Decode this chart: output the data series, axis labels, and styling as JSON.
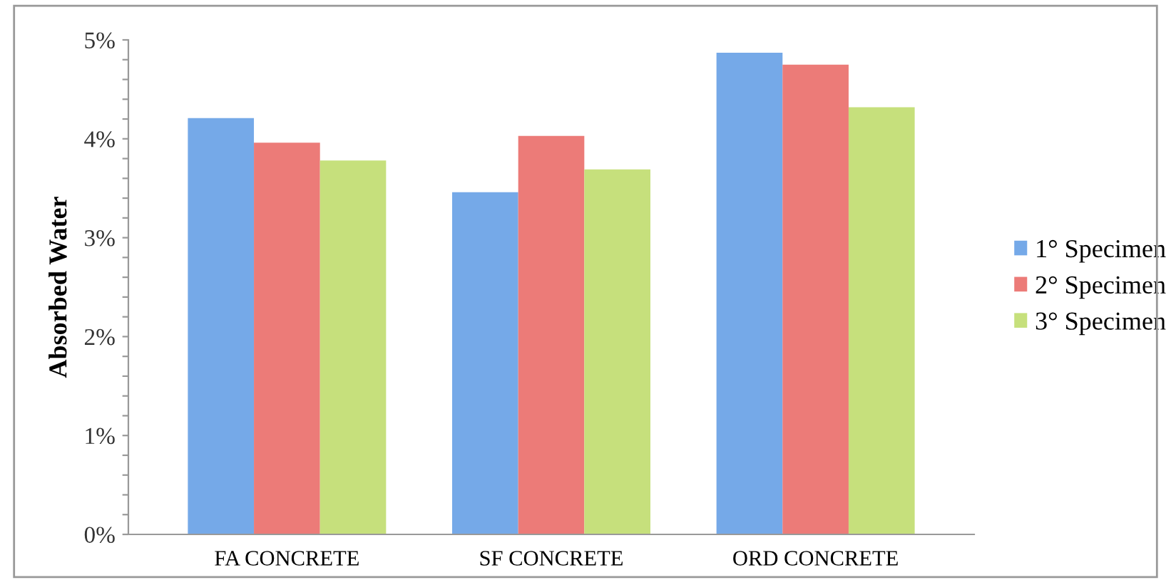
{
  "chart_data": {
    "type": "bar",
    "ylabel": "Absorbed Water",
    "categories": [
      "FA CONCRETE",
      "SF CONCRETE",
      "ORD CONCRETE"
    ],
    "series": [
      {
        "name": "1° Specimen",
        "color": "#75a9e8",
        "values": [
          4.21,
          3.46,
          4.87
        ]
      },
      {
        "name": "2° Specimen",
        "color": "#ec7b78",
        "values": [
          3.96,
          4.03,
          4.75
        ]
      },
      {
        "name": "3° Specimen",
        "color": "#c6e07c",
        "values": [
          3.78,
          3.69,
          4.32
        ]
      }
    ],
    "ylim": [
      0,
      5
    ],
    "yticks": [
      {
        "value": 0,
        "label": "0%"
      },
      {
        "value": 0.2,
        "label": null
      },
      {
        "value": 0.4,
        "label": null
      },
      {
        "value": 0.6,
        "label": null
      },
      {
        "value": 0.8,
        "label": null
      },
      {
        "value": 1,
        "label": "1%"
      },
      {
        "value": 1.2,
        "label": null
      },
      {
        "value": 1.4,
        "label": null
      },
      {
        "value": 1.6,
        "label": null
      },
      {
        "value": 1.8,
        "label": null
      },
      {
        "value": 2,
        "label": "2%"
      },
      {
        "value": 2.2,
        "label": null
      },
      {
        "value": 2.4,
        "label": null
      },
      {
        "value": 2.6,
        "label": null
      },
      {
        "value": 2.8,
        "label": null
      },
      {
        "value": 3,
        "label": "3%"
      },
      {
        "value": 3.2,
        "label": null
      },
      {
        "value": 3.4,
        "label": null
      },
      {
        "value": 3.6,
        "label": null
      },
      {
        "value": 3.8,
        "label": null
      },
      {
        "value": 4,
        "label": "4%"
      },
      {
        "value": 4.2,
        "label": null
      },
      {
        "value": 4.4,
        "label": null
      },
      {
        "value": 4.6,
        "label": null
      },
      {
        "value": 4.8,
        "label": null
      },
      {
        "value": 5,
        "label": "5%"
      }
    ],
    "grid": false,
    "legend": "right"
  }
}
